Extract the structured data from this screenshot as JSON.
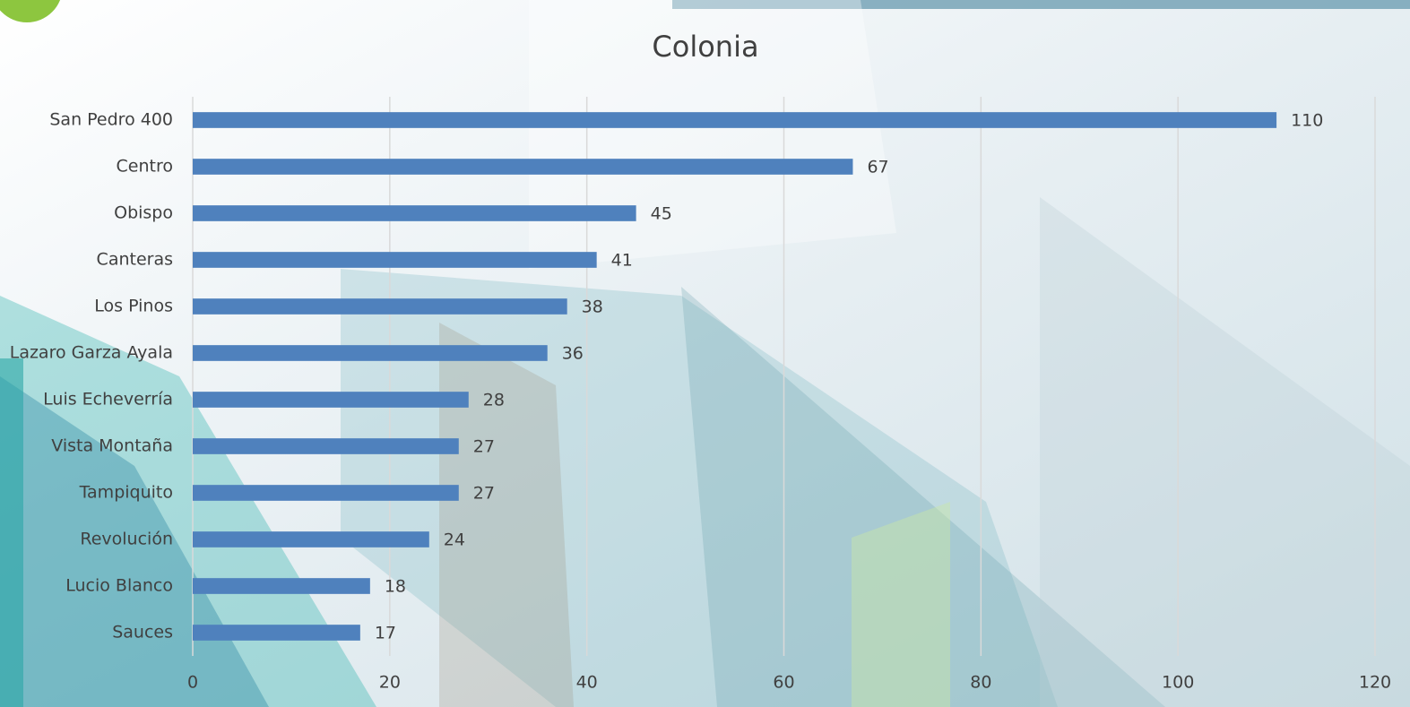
{
  "chart_data": {
    "type": "bar",
    "orientation": "horizontal",
    "title": "Colonia",
    "categories": [
      "San Pedro 400",
      "Centro",
      "Obispo",
      "Canteras",
      "Los Pinos",
      "Lazaro Garza Ayala",
      "Luis Echeverría",
      "Vista Montaña",
      "Tampiquito",
      "Revolución",
      "Lucio Blanco",
      "Sauces"
    ],
    "values": [
      110,
      67,
      45,
      41,
      38,
      36,
      28,
      27,
      27,
      24,
      18,
      17
    ],
    "color": "#4f81bd",
    "xlim": [
      0,
      120
    ],
    "xticks": [
      0,
      20,
      40,
      60,
      80,
      100,
      120
    ],
    "grid": true,
    "data_labels": true
  }
}
